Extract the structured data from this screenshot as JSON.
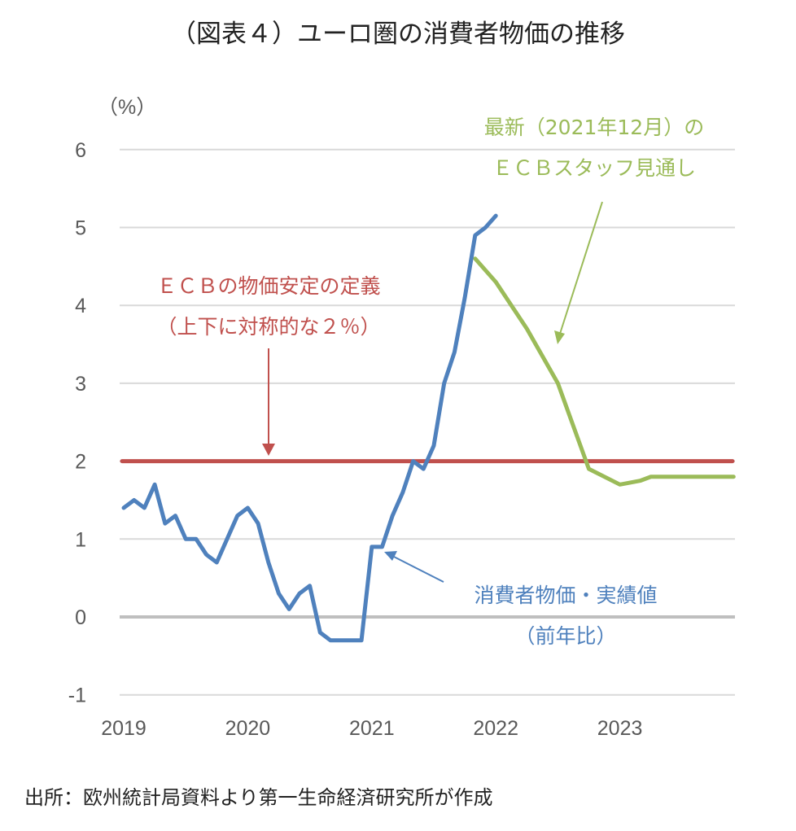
{
  "chart_data": {
    "type": "line",
    "title": "（図表４）ユーロ圏の消費者物価の推移",
    "ylabel": "（%）",
    "ylim": [
      -1,
      6
    ],
    "yticks": [
      "6",
      "5",
      "4",
      "3",
      "2",
      "1",
      "0",
      "-1"
    ],
    "xticks": [
      "2019",
      "2020",
      "2021",
      "2022",
      "2023"
    ],
    "grid": true,
    "series": [
      {
        "name": "消費者物価・実績値（前年比）",
        "color": "#4f81bd",
        "x": [
          "2019-01",
          "2019-02",
          "2019-03",
          "2019-04",
          "2019-05",
          "2019-06",
          "2019-07",
          "2019-08",
          "2019-09",
          "2019-10",
          "2019-11",
          "2019-12",
          "2020-01",
          "2020-02",
          "2020-03",
          "2020-04",
          "2020-05",
          "2020-06",
          "2020-07",
          "2020-08",
          "2020-09",
          "2020-10",
          "2020-11",
          "2020-12",
          "2021-01",
          "2021-02",
          "2021-03",
          "2021-04",
          "2021-05",
          "2021-06",
          "2021-07",
          "2021-08",
          "2021-09",
          "2021-10",
          "2021-11",
          "2021-12",
          "2022-01"
        ],
        "values": [
          1.4,
          1.5,
          1.4,
          1.7,
          1.2,
          1.3,
          1.0,
          1.0,
          0.8,
          0.7,
          1.0,
          1.3,
          1.4,
          1.2,
          0.7,
          0.3,
          0.1,
          0.3,
          0.4,
          -0.2,
          -0.3,
          -0.3,
          -0.3,
          -0.3,
          0.9,
          0.9,
          1.3,
          1.6,
          2.0,
          1.9,
          2.2,
          3.0,
          3.4,
          4.1,
          4.9,
          5.0,
          5.15
        ]
      },
      {
        "name": "最新（2021年12月）のＥＣＢスタッフ見通し",
        "color": "#9bbb59",
        "x": [
          "2021-11",
          "2022-01",
          "2022-04",
          "2022-07",
          "2022-10",
          "2023-01",
          "2023-03",
          "2023-04",
          "2023-12"
        ],
        "values": [
          4.6,
          4.3,
          3.7,
          3.0,
          1.9,
          1.7,
          1.75,
          1.8,
          1.8
        ]
      },
      {
        "name": "ＥＣＢの物価安定の定義（上下に対称的な２％）",
        "color": "#c0504d",
        "x": [
          "2019-01",
          "2023-12"
        ],
        "values": [
          2,
          2
        ]
      }
    ],
    "annotations": {
      "ecb_target_line1": "ＥＣＢの物価安定の定義",
      "ecb_target_line2": "（上下に対称的な２％）",
      "forecast_line1": "最新（2021年12月）の",
      "forecast_line2": "ＥＣＢスタッフ見通し",
      "actual_line1": "消費者物価・実績値",
      "actual_line2": "（前年比）"
    },
    "negative_tick_color": "#ff0000"
  },
  "source": "出所：欧州統計局資料より第一生命経済研究所が作成"
}
